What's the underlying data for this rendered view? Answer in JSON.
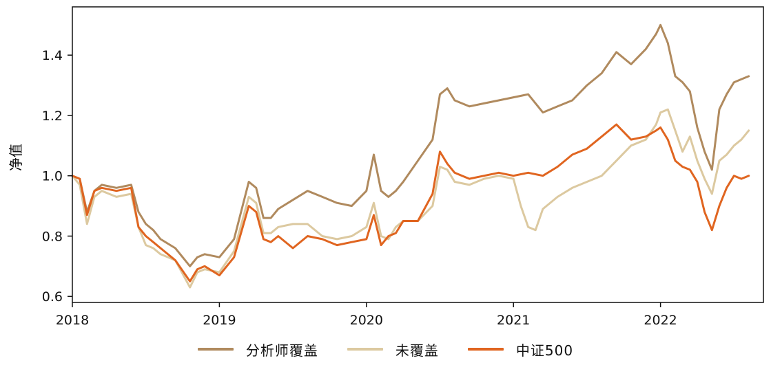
{
  "chart_data": {
    "type": "line",
    "ylabel": "净值",
    "xlabel": "",
    "title": "",
    "xlim": [
      2018.0,
      2022.7
    ],
    "ylim": [
      0.58,
      1.56
    ],
    "xticks": [
      2018,
      2019,
      2020,
      2021,
      2022
    ],
    "xtick_labels": [
      "2018",
      "2019",
      "2020",
      "2021",
      "2022"
    ],
    "yticks": [
      0.6,
      0.8,
      1.0,
      1.2,
      1.4
    ],
    "ytick_labels": [
      "0.6",
      "0.8",
      "1.0",
      "1.2",
      "1.4"
    ],
    "grid": false,
    "legend_position": "bottom-center",
    "series": [
      {
        "name": "分析师覆盖",
        "color": "#b08a5e",
        "x": [
          2018.0,
          2018.05,
          2018.1,
          2018.15,
          2018.2,
          2018.3,
          2018.4,
          2018.45,
          2018.5,
          2018.55,
          2018.6,
          2018.7,
          2018.8,
          2018.85,
          2018.9,
          2019.0,
          2019.1,
          2019.2,
          2019.25,
          2019.3,
          2019.35,
          2019.4,
          2019.5,
          2019.6,
          2019.7,
          2019.8,
          2019.9,
          2020.0,
          2020.05,
          2020.1,
          2020.15,
          2020.2,
          2020.25,
          2020.35,
          2020.45,
          2020.5,
          2020.55,
          2020.6,
          2020.7,
          2020.8,
          2020.9,
          2021.0,
          2021.1,
          2021.2,
          2021.3,
          2021.4,
          2021.5,
          2021.6,
          2021.7,
          2021.8,
          2021.9,
          2021.97,
          2022.0,
          2022.05,
          2022.1,
          2022.15,
          2022.2,
          2022.25,
          2022.3,
          2022.35,
          2022.4,
          2022.45,
          2022.5,
          2022.55,
          2022.6
        ],
        "y": [
          1.0,
          0.99,
          0.88,
          0.95,
          0.97,
          0.96,
          0.97,
          0.88,
          0.84,
          0.82,
          0.79,
          0.76,
          0.7,
          0.73,
          0.74,
          0.73,
          0.79,
          0.98,
          0.96,
          0.86,
          0.86,
          0.89,
          0.92,
          0.95,
          0.93,
          0.91,
          0.9,
          0.95,
          1.07,
          0.95,
          0.93,
          0.95,
          0.98,
          1.05,
          1.12,
          1.27,
          1.29,
          1.25,
          1.23,
          1.24,
          1.25,
          1.26,
          1.27,
          1.21,
          1.23,
          1.25,
          1.3,
          1.34,
          1.41,
          1.37,
          1.42,
          1.47,
          1.5,
          1.44,
          1.33,
          1.31,
          1.28,
          1.16,
          1.08,
          1.02,
          1.22,
          1.27,
          1.31,
          1.32,
          1.33
        ]
      },
      {
        "name": "未覆盖",
        "color": "#dcc9a0",
        "x": [
          2018.0,
          2018.05,
          2018.1,
          2018.15,
          2018.2,
          2018.3,
          2018.4,
          2018.45,
          2018.5,
          2018.55,
          2018.6,
          2018.7,
          2018.8,
          2018.85,
          2018.9,
          2019.0,
          2019.1,
          2019.2,
          2019.25,
          2019.3,
          2019.35,
          2019.4,
          2019.5,
          2019.6,
          2019.7,
          2019.8,
          2019.9,
          2020.0,
          2020.05,
          2020.1,
          2020.15,
          2020.2,
          2020.25,
          2020.35,
          2020.45,
          2020.5,
          2020.55,
          2020.6,
          2020.7,
          2020.8,
          2020.9,
          2021.0,
          2021.05,
          2021.1,
          2021.15,
          2021.2,
          2021.3,
          2021.4,
          2021.5,
          2021.6,
          2021.7,
          2021.8,
          2021.9,
          2021.97,
          2022.0,
          2022.05,
          2022.1,
          2022.15,
          2022.2,
          2022.25,
          2022.3,
          2022.35,
          2022.4,
          2022.45,
          2022.5,
          2022.55,
          2022.6
        ],
        "y": [
          1.0,
          0.97,
          0.84,
          0.93,
          0.95,
          0.93,
          0.94,
          0.83,
          0.77,
          0.76,
          0.74,
          0.72,
          0.63,
          0.68,
          0.69,
          0.68,
          0.75,
          0.93,
          0.91,
          0.81,
          0.81,
          0.83,
          0.84,
          0.84,
          0.8,
          0.79,
          0.8,
          0.83,
          0.91,
          0.8,
          0.79,
          0.83,
          0.85,
          0.85,
          0.9,
          1.03,
          1.02,
          0.98,
          0.97,
          0.99,
          1.0,
          0.99,
          0.9,
          0.83,
          0.82,
          0.89,
          0.93,
          0.96,
          0.98,
          1.0,
          1.05,
          1.1,
          1.12,
          1.17,
          1.21,
          1.22,
          1.15,
          1.08,
          1.13,
          1.05,
          0.99,
          0.94,
          1.05,
          1.07,
          1.1,
          1.12,
          1.15
        ]
      },
      {
        "name": "中证500",
        "color": "#e06520",
        "x": [
          2018.0,
          2018.05,
          2018.1,
          2018.15,
          2018.2,
          2018.3,
          2018.4,
          2018.45,
          2018.5,
          2018.55,
          2018.6,
          2018.7,
          2018.8,
          2018.85,
          2018.9,
          2019.0,
          2019.1,
          2019.2,
          2019.25,
          2019.3,
          2019.35,
          2019.4,
          2019.5,
          2019.6,
          2019.7,
          2019.8,
          2019.9,
          2020.0,
          2020.05,
          2020.1,
          2020.15,
          2020.2,
          2020.25,
          2020.35,
          2020.45,
          2020.5,
          2020.55,
          2020.6,
          2020.7,
          2020.8,
          2020.9,
          2021.0,
          2021.1,
          2021.2,
          2021.3,
          2021.4,
          2021.5,
          2021.6,
          2021.7,
          2021.8,
          2021.9,
          2021.97,
          2022.0,
          2022.05,
          2022.1,
          2022.15,
          2022.2,
          2022.25,
          2022.3,
          2022.35,
          2022.4,
          2022.45,
          2022.5,
          2022.55,
          2022.6
        ],
        "y": [
          1.0,
          0.99,
          0.87,
          0.95,
          0.96,
          0.95,
          0.96,
          0.83,
          0.8,
          0.78,
          0.76,
          0.72,
          0.65,
          0.69,
          0.7,
          0.67,
          0.73,
          0.9,
          0.88,
          0.79,
          0.78,
          0.8,
          0.76,
          0.8,
          0.79,
          0.77,
          0.78,
          0.79,
          0.87,
          0.77,
          0.8,
          0.81,
          0.85,
          0.85,
          0.94,
          1.08,
          1.04,
          1.01,
          0.99,
          1.0,
          1.01,
          1.0,
          1.01,
          1.0,
          1.03,
          1.07,
          1.09,
          1.13,
          1.17,
          1.12,
          1.13,
          1.15,
          1.16,
          1.12,
          1.05,
          1.03,
          1.02,
          0.98,
          0.88,
          0.82,
          0.9,
          0.96,
          1.0,
          0.99,
          1.0
        ]
      }
    ]
  }
}
